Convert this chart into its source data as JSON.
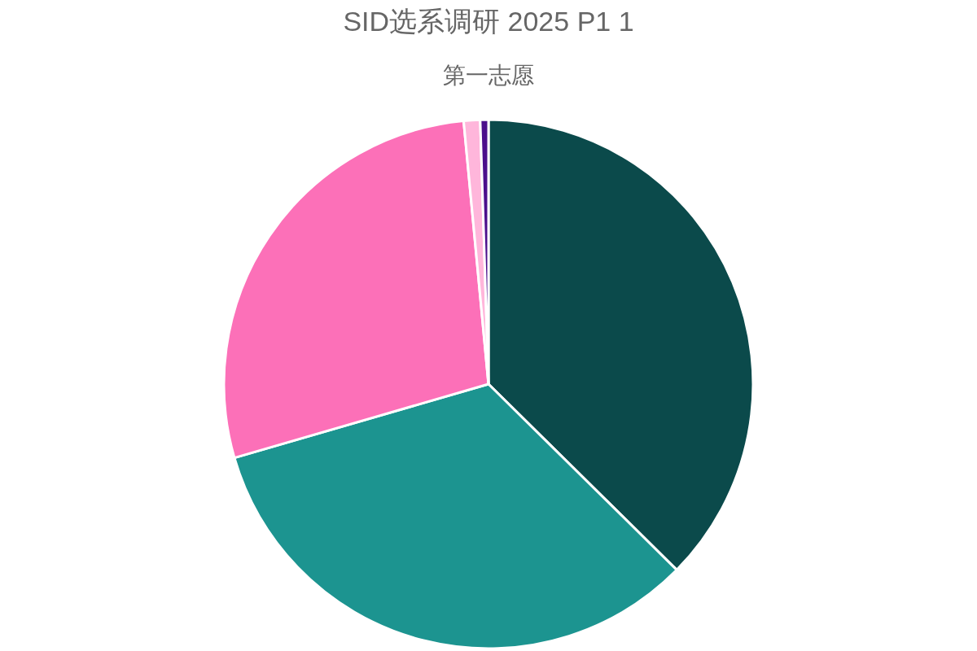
{
  "chart_data": {
    "type": "pie",
    "title": "SID选系调研 2025 P1 1",
    "subtitle": "第一志愿",
    "categories": [
      null,
      null,
      null,
      null,
      null
    ],
    "values": [
      37.4,
      33.1,
      28.0,
      1.0,
      0.5
    ],
    "colors": [
      "#0b4a4b",
      "#1c9490",
      "#fc70b8",
      "#ffb6db",
      "#4b0f8c"
    ]
  }
}
